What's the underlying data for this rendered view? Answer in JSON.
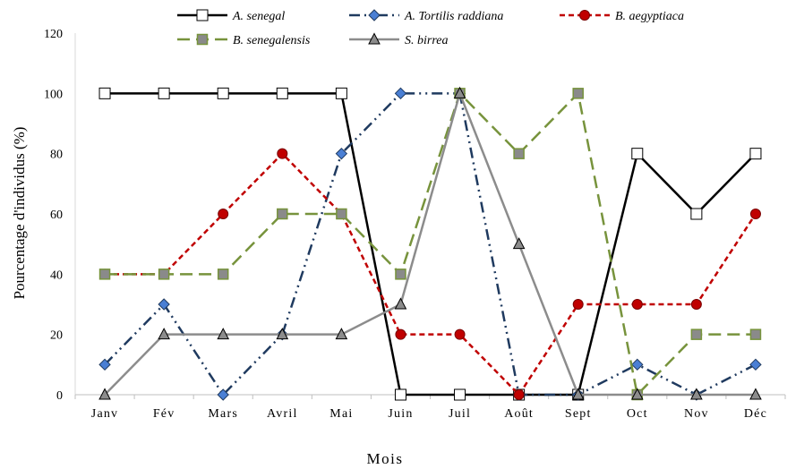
{
  "chart_data": {
    "type": "line",
    "title": "",
    "xlabel": "Mois",
    "ylabel": "Pourcentage d'individus (%)",
    "ylim": [
      0,
      120
    ],
    "yticks": [
      0,
      20,
      40,
      60,
      80,
      100,
      120
    ],
    "categories": [
      "Janv",
      "Fév",
      "Mars",
      "Avril",
      "Mai",
      "Juin",
      "Juil",
      "Août",
      "Sept",
      "Oct",
      "Nov",
      "Déc"
    ],
    "grid": false,
    "legend_position": "top",
    "series": [
      {
        "name": "A. senegal",
        "color": "#000000",
        "dash": "solid",
        "marker": "square-open",
        "values": [
          100,
          100,
          100,
          100,
          100,
          0,
          0,
          0,
          0,
          80,
          60,
          80
        ]
      },
      {
        "name": "A. Tortilis raddiana",
        "color": "#1f3a5f",
        "dash": "dash-dot-dot",
        "marker": "diamond",
        "marker_color": "#4a7fd4",
        "values": [
          10,
          30,
          0,
          20,
          80,
          100,
          100,
          0,
          0,
          10,
          0,
          10
        ]
      },
      {
        "name": "B. aegyptiaca",
        "color": "#c00000",
        "dash": "dashed",
        "marker": "circle",
        "values": [
          40,
          40,
          60,
          80,
          60,
          20,
          20,
          0,
          30,
          30,
          30,
          60
        ]
      },
      {
        "name": "B. senegalensis",
        "color": "#77933c",
        "dash": "long-dash",
        "marker": "square",
        "marker_color": "#8a8a8a",
        "values": [
          40,
          40,
          40,
          60,
          60,
          40,
          100,
          80,
          100,
          0,
          20,
          20
        ]
      },
      {
        "name": "S. birrea",
        "color": "#8c8c8c",
        "dash": "solid",
        "marker": "triangle",
        "values": [
          0,
          20,
          20,
          20,
          20,
          30,
          100,
          50,
          0,
          0,
          0,
          0
        ]
      }
    ]
  }
}
